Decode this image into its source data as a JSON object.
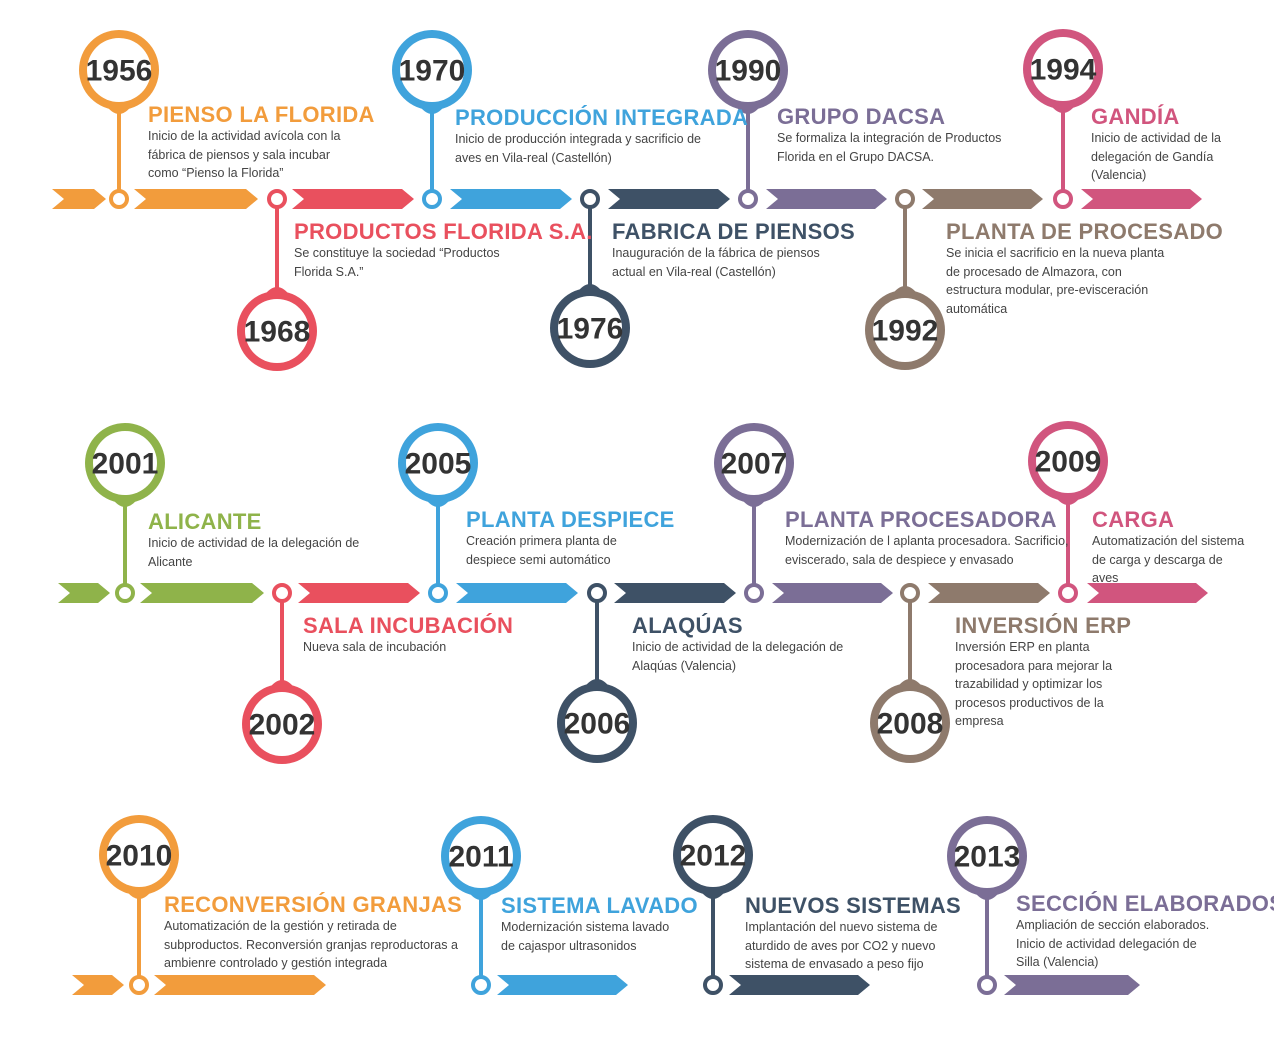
{
  "colors": {
    "orange": "#f29c3c",
    "red": "#e9505e",
    "blue": "#3fa3dc",
    "navy": "#3e5166",
    "purple": "#7b6e96",
    "brown": "#8e7a6c",
    "pink": "#d1557e",
    "green": "#8fb34a"
  },
  "events": [
    {
      "year": "1956",
      "title": "PIENSO LA FLORIDA",
      "text": "Inicio de la actividad avícola con la fábrica de piensos y sala incubar como “Pienso la Florida”",
      "color": "orange"
    },
    {
      "year": "1968",
      "title": "PRODUCTOS FLORIDA S.A.",
      "text": "Se constituye la sociedad “Productos Florida S.A.”",
      "color": "red"
    },
    {
      "year": "1970",
      "title": "PRODUCCIÓN INTEGRADA",
      "text": "Inicio de producción integrada y sacrificio de aves en Vila-real (Castellón)",
      "color": "blue"
    },
    {
      "year": "1976",
      "title": "FABRICA DE PIENSOS",
      "text": "Inauguración de la fábrica de piensos actual en  Vila-real (Castellón)",
      "color": "navy"
    },
    {
      "year": "1990",
      "title": "GRUPO DACSA",
      "text": "Se formaliza la integración de Productos Florida en el Grupo DACSA.",
      "color": "purple"
    },
    {
      "year": "1992",
      "title": "PLANTA DE PROCESADO",
      "text": "Se inicia el sacrificio en la nueva planta de procesado de Almazora, con estructura modular, pre-evisceración automática",
      "color": "brown"
    },
    {
      "year": "1994",
      "title": "GANDÍA",
      "text": "Inicio de actividad de la delegación de Gandía (Valencia)",
      "color": "pink"
    },
    {
      "year": "2001",
      "title": "ALICANTE",
      "text": "Inicio de actividad de la delegación de Alicante",
      "color": "green"
    },
    {
      "year": "2002",
      "title": "SALA INCUBACIÓN",
      "text": "Nueva sala de incubación",
      "color": "red"
    },
    {
      "year": "2005",
      "title": "PLANTA DESPIECE",
      "text": "Creación primera planta de despiece semi automático",
      "color": "blue"
    },
    {
      "year": "2006",
      "title": "ALAQÚAS",
      "text": "Inicio de actividad de la delegación de Alaqúas (Valencia)",
      "color": "navy"
    },
    {
      "year": "2007",
      "title": "PLANTA PROCESADORA",
      "text": "Modernización de l aplanta procesadora. Sacrificio, eviscerado, sala de despiece y envasado",
      "color": "purple"
    },
    {
      "year": "2008",
      "title": "INVERSIÓN ERP",
      "text": "Inversión ERP en planta procesadora para mejorar la trazabilidad y optimizar los procesos productivos de la empresa",
      "color": "brown"
    },
    {
      "year": "2009",
      "title": "CARGA",
      "text": "Automatización del sistema de carga y descarga de aves",
      "color": "pink"
    },
    {
      "year": "2010",
      "title": "RECONVERSIÓN GRANJAS",
      "text": "Automatización de la gestión y retirada de subproductos. Reconversión granjas reproductoras a ambienre controlado y gestión integrada",
      "color": "orange"
    },
    {
      "year": "2011",
      "title": "SISTEMA LAVADO",
      "text": "Modernización sistema lavado de cajaspor ultrasonidos",
      "color": "blue"
    },
    {
      "year": "2012",
      "title": "NUEVOS SISTEMAS",
      "text": "Implantación del nuevo sistema de aturdido de aves por CO2 y nuevo sistema de envasado a peso fijo",
      "color": "navy"
    },
    {
      "year": "2013",
      "title": "SECCIÓN ELABORADOS",
      "text": "Ampliación de sección elaborados. Inicio de actividad delegación de Silla (Valencia)",
      "color": "purple"
    }
  ]
}
